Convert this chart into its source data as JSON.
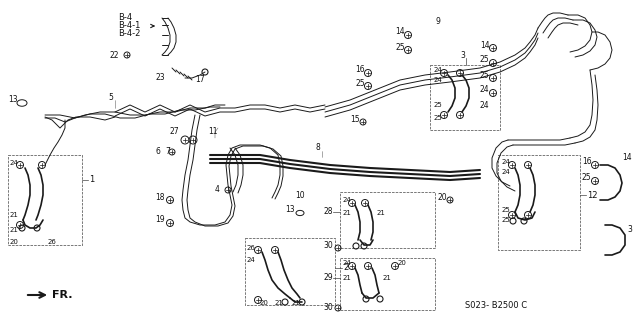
{
  "bg_color": "#ffffff",
  "line_color": "#1a1a1a",
  "label_color": "#111111",
  "fig_width": 6.4,
  "fig_height": 3.19,
  "dpi": 100,
  "diagram_ref": "S023- B2500 C",
  "header_labels": [
    "B-4",
    "B-4-1",
    "B-4-2"
  ],
  "fr_label": "FR.",
  "pipe_lw": 1.2,
  "thin_lw": 0.7,
  "thick_lw": 2.2
}
